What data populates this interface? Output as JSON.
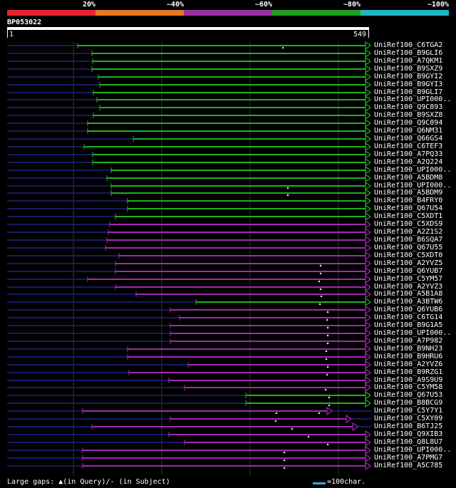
{
  "scale": {
    "labels": [
      "20%",
      "~40%",
      "~60%",
      "~80%",
      "~100%"
    ],
    "colors": [
      "#e8222f",
      "#e8781e",
      "#972fa0",
      "#1fa01e",
      "#22b5c4"
    ]
  },
  "query": {
    "id": "BP053022",
    "start": "1",
    "end": "549"
  },
  "legend": {
    "text": "Large gaps: ▲(in Query)/- (in Subject)",
    "scale_text": "=100char."
  },
  "colors": {
    "green": "#22b022",
    "magenta": "#a02ab0",
    "navy": "#1a1a60",
    "grid": "#333333"
  },
  "hits": [
    {
      "label": "UniRef100_C6TGA2",
      "start": 109,
      "color": "green",
      "marks": [
        397
      ]
    },
    {
      "label": "UniRef100_B9GLI6",
      "start": 129,
      "color": "green",
      "marks": []
    },
    {
      "label": "UniRef100_A7QKM1",
      "start": 130,
      "color": "green",
      "marks": []
    },
    {
      "label": "UniRef100_B9SXZ9",
      "start": 129,
      "color": "green",
      "marks": []
    },
    {
      "label": "UniRef100_B9GYI2",
      "start": 138,
      "color": "green",
      "marks": []
    },
    {
      "label": "UniRef100_B9GYI3",
      "start": 140,
      "color": "green",
      "marks": []
    },
    {
      "label": "UniRef100_B9GLI7",
      "start": 131,
      "color": "green",
      "marks": []
    },
    {
      "label": "UniRef100_UPI000..",
      "start": 136,
      "color": "green",
      "marks": []
    },
    {
      "label": "UniRef100_Q9C893",
      "start": 140,
      "color": "green",
      "marks": []
    },
    {
      "label": "UniRef100_B9SXZ8",
      "start": 131,
      "color": "green",
      "marks": []
    },
    {
      "label": "UniRef100_Q9C894",
      "start": 123,
      "color": "green",
      "marks": []
    },
    {
      "label": "UniRef100_Q6NM31",
      "start": 123,
      "color": "green",
      "marks": []
    },
    {
      "label": "UniRef100_Q66GS4",
      "start": 187,
      "color": "green",
      "marks": []
    },
    {
      "label": "UniRef100_C6TEF3",
      "start": 118,
      "color": "green",
      "marks": []
    },
    {
      "label": "UniRef100_A7PQ33",
      "start": 130,
      "color": "green",
      "marks": []
    },
    {
      "label": "UniRef100_A2Q224",
      "start": 130,
      "color": "green",
      "marks": []
    },
    {
      "label": "UniRef100_UPI000..",
      "start": 156,
      "color": "green",
      "marks": []
    },
    {
      "label": "UniRef100_A5BDM8",
      "start": 150,
      "color": "green",
      "marks": []
    },
    {
      "label": "UniRef100_UPI000..",
      "start": 156,
      "color": "green",
      "marks": [
        404
      ]
    },
    {
      "label": "UniRef100_A5BDM9",
      "start": 156,
      "color": "green",
      "marks": [
        404
      ]
    },
    {
      "label": "UniRef100_B4FRY0",
      "start": 179,
      "color": "green",
      "marks": []
    },
    {
      "label": "UniRef100_Q67U54",
      "start": 179,
      "color": "green",
      "marks": []
    },
    {
      "label": "UniRef100_C5XDT1",
      "start": 162,
      "color": "green",
      "marks": []
    },
    {
      "label": "UniRef100_C5XDS9",
      "start": 154,
      "color": "magenta",
      "marks": []
    },
    {
      "label": "UniRef100_A2Z1S2",
      "start": 152,
      "color": "magenta",
      "marks": []
    },
    {
      "label": "UniRef100_B6SQA7",
      "start": 150,
      "color": "magenta",
      "marks": []
    },
    {
      "label": "UniRef100_Q67U55",
      "start": 148,
      "color": "magenta",
      "marks": []
    },
    {
      "label": "UniRef100_C5XDT0",
      "start": 167,
      "color": "magenta",
      "marks": []
    },
    {
      "label": "UniRef100_A2YVZ5",
      "start": 162,
      "color": "magenta",
      "marks": [
        450
      ]
    },
    {
      "label": "UniRef100_Q6YUB7",
      "start": 162,
      "color": "magenta",
      "marks": [
        450
      ]
    },
    {
      "label": "UniRef100_C5YM57",
      "start": 123,
      "color": "magenta",
      "marks": [
        448
      ]
    },
    {
      "label": "UniRef100_A2YVZ3",
      "start": 162,
      "color": "magenta",
      "marks": [
        450
      ]
    },
    {
      "label": "UniRef100_A5B1A8",
      "start": 191,
      "color": "magenta",
      "marks": [
        451
      ]
    },
    {
      "label": "UniRef100_A3BTW6",
      "start": 275,
      "color": "green",
      "marks": [
        449
      ]
    },
    {
      "label": "UniRef100_Q6YUB6",
      "start": 239,
      "color": "magenta",
      "marks": [
        460
      ]
    },
    {
      "label": "UniRef100_C6TG14",
      "start": 252,
      "color": "magenta",
      "marks": [
        459
      ]
    },
    {
      "label": "UniRef100_B9G1A5",
      "start": 239,
      "color": "magenta",
      "marks": [
        460
      ]
    },
    {
      "label": "UniRef100_UPI000..",
      "start": 239,
      "color": "magenta",
      "marks": [
        460
      ]
    },
    {
      "label": "UniRef100_A7P982",
      "start": 239,
      "color": "magenta",
      "marks": [
        460
      ]
    },
    {
      "label": "UniRef100_B9NH23",
      "start": 179,
      "color": "magenta",
      "marks": [
        458
      ]
    },
    {
      "label": "UniRef100_B9HRU6",
      "start": 179,
      "color": "magenta",
      "marks": [
        458
      ]
    },
    {
      "label": "UniRef100_A2YVZ6",
      "start": 264,
      "color": "magenta",
      "marks": [
        460
      ]
    },
    {
      "label": "UniRef100_B9RZG1",
      "start": 181,
      "color": "magenta",
      "marks": [
        459
      ]
    },
    {
      "label": "UniRef100_A9S9U9",
      "start": 237,
      "color": "magenta",
      "marks": []
    },
    {
      "label": "UniRef100_C5YM58",
      "start": 259,
      "color": "magenta",
      "marks": [
        457
      ]
    },
    {
      "label": "UniRef100_Q67U53",
      "start": 345,
      "color": "green",
      "marks": [
        462
      ]
    },
    {
      "label": "UniRef100_B8BCG9",
      "start": 345,
      "color": "green",
      "marks": [
        462
      ]
    },
    {
      "label": "UniRef100_C5Y7Y1",
      "start": 116,
      "color": "magenta",
      "end": 459,
      "marks": [
        388,
        448
      ]
    },
    {
      "label": "UniRef100_C5XY09",
      "start": 239,
      "color": "magenta",
      "end": 486,
      "marks": [
        387
      ]
    },
    {
      "label": "UniRef100_B6TJ25",
      "start": 129,
      "color": "magenta",
      "end": 495,
      "marks": [
        410
      ]
    },
    {
      "label": "UniRef100_Q9XIB3",
      "start": 237,
      "color": "magenta",
      "marks": [
        433
      ]
    },
    {
      "label": "UniRef100_Q8L8U7",
      "start": 259,
      "color": "magenta",
      "marks": [
        460
      ]
    },
    {
      "label": "UniRef100_UPI000..",
      "start": 116,
      "color": "magenta",
      "marks": [
        399
      ]
    },
    {
      "label": "UniRef100_A7PMG7",
      "start": 116,
      "color": "magenta",
      "marks": [
        399
      ]
    },
    {
      "label": "UniRef100_A5C785",
      "start": 116,
      "color": "magenta",
      "marks": [
        399
      ]
    }
  ]
}
